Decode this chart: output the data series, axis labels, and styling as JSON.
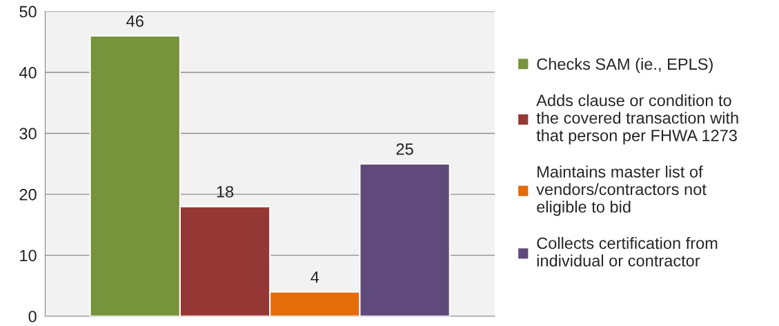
{
  "chart_data": {
    "type": "bar",
    "categories": [
      null
    ],
    "series": [
      {
        "name": "Checks SAM (ie., EPLS)",
        "color": "#77933c",
        "values": [
          46
        ]
      },
      {
        "name": "Adds clause or condition to\nthe covered transaction with\nthat person per FHWA 1273",
        "color": "#953735",
        "values": [
          18
        ]
      },
      {
        "name": "Maintains master list of\nvendors/contractors not\neligible to bid",
        "color": "#e46c0a",
        "values": [
          4
        ]
      },
      {
        "name": "Collects certification from\nindividual or contractor",
        "color": "#604a7b",
        "values": [
          25
        ]
      }
    ],
    "ylim": [
      0,
      50
    ],
    "yticks": [
      0,
      10,
      20,
      30,
      40,
      50
    ],
    "grid": "y",
    "legend": "right",
    "data_labels": true
  }
}
